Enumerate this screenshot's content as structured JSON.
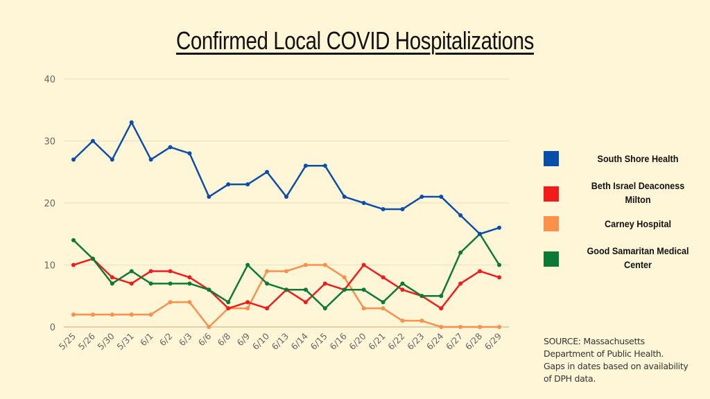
{
  "chart_data": {
    "type": "line",
    "title": "Confirmed Local COVID Hospitalizations",
    "xlabel": "",
    "ylabel": "",
    "ylim": [
      0,
      40
    ],
    "yticks": [
      0,
      10,
      20,
      30,
      40
    ],
    "grid": true,
    "legend_position": "right",
    "categories": [
      "5/25",
      "5/26",
      "5/30",
      "5/31",
      "6/1",
      "6/2",
      "6/3",
      "6/6",
      "6/8",
      "6/9",
      "6/10",
      "6/13",
      "6/14",
      "6/15",
      "6/16",
      "6/20",
      "6/21",
      "6/22",
      "6/23",
      "6/24",
      "6/27",
      "6/28",
      "6/29"
    ],
    "series": [
      {
        "name": "South Shore Health",
        "color": "#0b4dab",
        "values": [
          27,
          30,
          27,
          33,
          27,
          29,
          28,
          21,
          23,
          23,
          25,
          21,
          26,
          26,
          21,
          20,
          19,
          19,
          21,
          21,
          18,
          15,
          16
        ]
      },
      {
        "name": "Beth Israel Deaconess Milton",
        "color": "#f21b1b",
        "values": [
          10,
          11,
          8,
          7,
          9,
          9,
          8,
          6,
          3,
          4,
          3,
          6,
          4,
          7,
          6,
          10,
          8,
          6,
          5,
          3,
          7,
          9,
          8
        ]
      },
      {
        "name": "Carney Hospital",
        "color": "#fb8f4c",
        "values": [
          2,
          2,
          2,
          2,
          2,
          4,
          4,
          0,
          3,
          3,
          9,
          9,
          10,
          10,
          8,
          3,
          3,
          1,
          1,
          0,
          0,
          0,
          0
        ]
      },
      {
        "name": "Good Samaritan Medical Center",
        "color": "#0a7a35",
        "values": [
          14,
          11,
          7,
          9,
          7,
          7,
          7,
          6,
          4,
          10,
          7,
          6,
          6,
          3,
          6,
          6,
          4,
          7,
          5,
          5,
          12,
          15,
          10
        ]
      }
    ]
  },
  "legend": {
    "items": [
      {
        "label_lines": [
          "South Shore Health"
        ],
        "color": "#0b4dab"
      },
      {
        "label_lines": [
          "Beth Israel Deaconess",
          "Milton"
        ],
        "color": "#f21b1b"
      },
      {
        "label_lines": [
          "Carney Hospital"
        ],
        "color": "#fb8f4c"
      },
      {
        "label_lines": [
          "Good Samaritan Medical",
          "Center"
        ],
        "color": "#0a7a35"
      }
    ]
  },
  "source_note": {
    "lines": [
      "SOURCE: Massachusetts",
      "Department of Public Health.",
      "Gaps in dates based on availability",
      "of DPH data."
    ]
  },
  "colors": {
    "background": "#fef6d6",
    "grid": "#e8dfbf",
    "axis_text": "#666666"
  }
}
